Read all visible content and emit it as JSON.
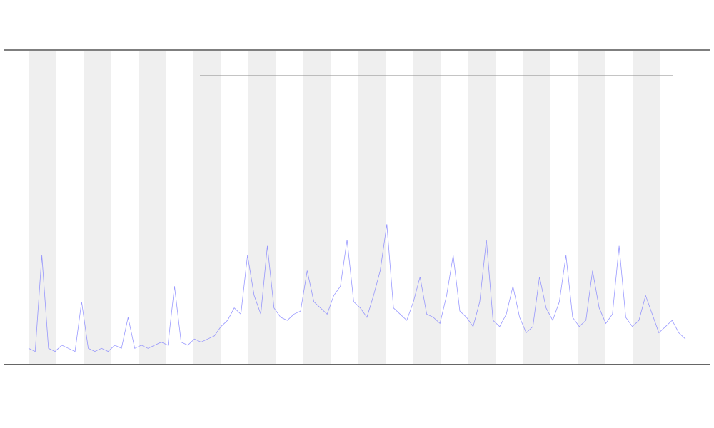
{
  "chart_data": {
    "type": "line",
    "color": "#7f7fff",
    "ylim": [
      0,
      100
    ],
    "values": [
      5,
      4,
      35,
      5,
      4,
      6,
      5,
      4,
      20,
      5,
      4,
      5,
      4,
      6,
      5,
      15,
      5,
      6,
      5,
      6,
      7,
      6,
      25,
      7,
      6,
      8,
      7,
      8,
      9,
      12,
      14,
      18,
      16,
      35,
      22,
      16,
      38,
      18,
      15,
      14,
      16,
      17,
      30,
      20,
      18,
      16,
      22,
      25,
      40,
      20,
      18,
      15,
      22,
      30,
      45,
      18,
      16,
      14,
      20,
      28,
      16,
      15,
      13,
      22,
      35,
      17,
      15,
      12,
      20,
      40,
      14,
      12,
      16,
      25,
      15,
      10,
      12,
      28,
      18,
      14,
      20,
      35,
      15,
      12,
      14,
      30,
      18,
      13,
      16,
      38,
      15,
      12,
      14,
      22,
      16,
      10,
      12,
      14,
      10,
      8
    ]
  }
}
